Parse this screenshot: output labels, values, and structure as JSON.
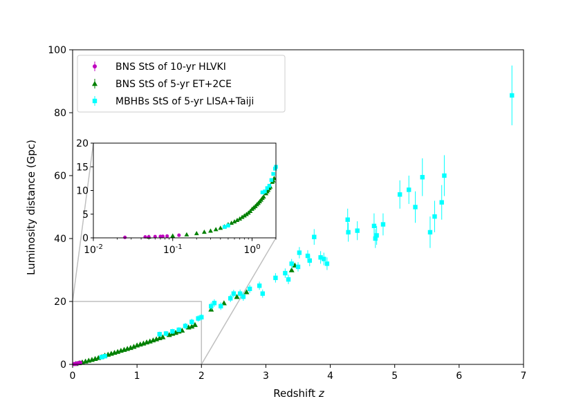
{
  "chart_data": [
    {
      "type": "scatter",
      "xlabel": "Redshift z",
      "ylabel": "Luminosity distance (Gpc)",
      "xlim": [
        0,
        7
      ],
      "ylim": [
        0,
        100
      ],
      "xticks": [
        0,
        1,
        2,
        3,
        4,
        5,
        6,
        7
      ],
      "yticks": [
        0,
        20,
        40,
        60,
        80,
        100
      ],
      "xtick_labels": [
        "0",
        "1",
        "2",
        "3",
        "4",
        "5",
        "6",
        "7"
      ],
      "ytick_labels": [
        "0",
        "20",
        "40",
        "60",
        "80",
        "100"
      ],
      "legend": {
        "position": "top-left"
      },
      "zoom_region": {
        "x": [
          0,
          2
        ],
        "y": [
          0,
          20
        ]
      },
      "series": [
        {
          "name": "BNS StS of 10-yr HLVKI",
          "marker": "circle",
          "color": "#bf00bf",
          "points": [
            [
              0.025,
              0.1
            ],
            [
              0.045,
              0.2
            ],
            [
              0.05,
              0.22
            ],
            [
              0.06,
              0.26
            ],
            [
              0.07,
              0.3
            ],
            [
              0.075,
              0.33
            ],
            [
              0.085,
              0.38
            ],
            [
              0.12,
              0.55
            ]
          ]
        },
        {
          "name": "BNS StS of 5-yr ET+2CE",
          "marker": "triangle",
          "color": "#008000",
          "points": [
            [
              0.05,
              0.22
            ],
            [
              0.1,
              0.45
            ],
            [
              0.15,
              0.7
            ],
            [
              0.2,
              0.97
            ],
            [
              0.25,
              1.25
            ],
            [
              0.3,
              1.5
            ],
            [
              0.35,
              1.8
            ],
            [
              0.4,
              2.1
            ],
            [
              0.45,
              2.4
            ],
            [
              0.5,
              2.85
            ],
            [
              0.55,
              3.15
            ],
            [
              0.6,
              3.45
            ],
            [
              0.65,
              3.75
            ],
            [
              0.7,
              4.05
            ],
            [
              0.75,
              4.4
            ],
            [
              0.8,
              4.7
            ],
            [
              0.85,
              5.0
            ],
            [
              0.9,
              5.3
            ],
            [
              0.95,
              5.65
            ],
            [
              1.0,
              6.1
            ],
            [
              1.05,
              6.4
            ],
            [
              1.1,
              6.7
            ],
            [
              1.15,
              7.05
            ],
            [
              1.2,
              7.35
            ],
            [
              1.25,
              7.7
            ],
            [
              1.3,
              8.05
            ],
            [
              1.35,
              8.4
            ],
            [
              1.4,
              8.7
            ],
            [
              1.5,
              9.4
            ],
            [
              1.55,
              9.8
            ],
            [
              1.6,
              10.1
            ],
            [
              1.65,
              10.5
            ],
            [
              1.7,
              10.8
            ],
            [
              1.8,
              11.8
            ],
            [
              1.85,
              12.1
            ],
            [
              1.9,
              12.6
            ],
            [
              2.15,
              17.5
            ],
            [
              2.35,
              19.5
            ],
            [
              2.55,
              21.5
            ],
            [
              2.7,
              23.0
            ],
            [
              3.4,
              30.0
            ],
            [
              3.45,
              31.5
            ]
          ]
        },
        {
          "name": "MBHBs StS of 5-yr LISA+Taiji",
          "marker": "square",
          "color": "#00ffff",
          "points": [
            [
              0.45,
              2.3,
              0.4
            ],
            [
              0.5,
              2.6,
              0.4
            ],
            [
              1.35,
              9.6,
              0.8
            ],
            [
              1.45,
              9.8,
              0.8
            ],
            [
              1.55,
              10.5,
              0.8
            ],
            [
              1.65,
              11.0,
              0.8
            ],
            [
              1.75,
              12.2,
              1.0
            ],
            [
              1.85,
              13.5,
              1.0
            ],
            [
              1.95,
              14.6,
              1.0
            ],
            [
              2.0,
              15.0,
              1.0
            ],
            [
              2.15,
              18.5,
              1.2
            ],
            [
              2.2,
              19.5,
              1.2
            ],
            [
              2.3,
              18.5,
              1.2
            ],
            [
              2.45,
              21.0,
              1.2
            ],
            [
              2.5,
              22.5,
              1.2
            ],
            [
              2.6,
              22.5,
              1.3
            ],
            [
              2.65,
              21.5,
              1.3
            ],
            [
              2.75,
              24.0,
              1.3
            ],
            [
              2.9,
              25.0,
              1.3
            ],
            [
              2.95,
              22.5,
              1.3
            ],
            [
              3.15,
              27.5,
              1.5
            ],
            [
              3.3,
              29.0,
              1.5
            ],
            [
              3.35,
              27.0,
              1.5
            ],
            [
              3.4,
              32.0,
              1.5
            ],
            [
              3.5,
              31.0,
              1.5
            ],
            [
              3.52,
              35.5,
              1.8
            ],
            [
              3.65,
              34.5,
              1.8
            ],
            [
              3.68,
              33.0,
              1.8
            ],
            [
              3.75,
              40.5,
              2.5
            ],
            [
              3.85,
              34.0,
              2.0
            ],
            [
              3.9,
              33.5,
              2.0
            ],
            [
              3.95,
              32.0,
              2.0
            ],
            [
              4.27,
              46.0,
              3.5
            ],
            [
              4.28,
              42.0,
              3.0
            ],
            [
              4.42,
              42.5,
              3.0
            ],
            [
              4.68,
              44.0,
              4.0
            ],
            [
              4.7,
              40.0,
              3.0
            ],
            [
              4.72,
              41.0,
              3.0
            ],
            [
              4.82,
              44.5,
              3.5
            ],
            [
              5.08,
              54.0,
              4.5
            ],
            [
              5.22,
              55.5,
              4.5
            ],
            [
              5.32,
              50.0,
              5.0
            ],
            [
              5.43,
              59.5,
              6.0
            ],
            [
              5.55,
              42.0,
              5.0
            ],
            [
              5.62,
              47.0,
              5.0
            ],
            [
              5.73,
              51.5,
              5.5
            ],
            [
              5.77,
              60.0,
              6.5
            ],
            [
              6.82,
              85.5,
              9.5
            ]
          ]
        }
      ]
    },
    {
      "type": "scatter",
      "subplot": "inset",
      "xscale": "log",
      "xlim": [
        0.01,
        2
      ],
      "ylim": [
        0,
        20
      ],
      "xtick_labels": [
        "10^-2",
        "10^-1",
        "10^0"
      ],
      "yticks": [
        0,
        5,
        10,
        15,
        20
      ],
      "ytick_labels": [
        "0",
        "5",
        "10",
        "15",
        "20"
      ]
    }
  ]
}
